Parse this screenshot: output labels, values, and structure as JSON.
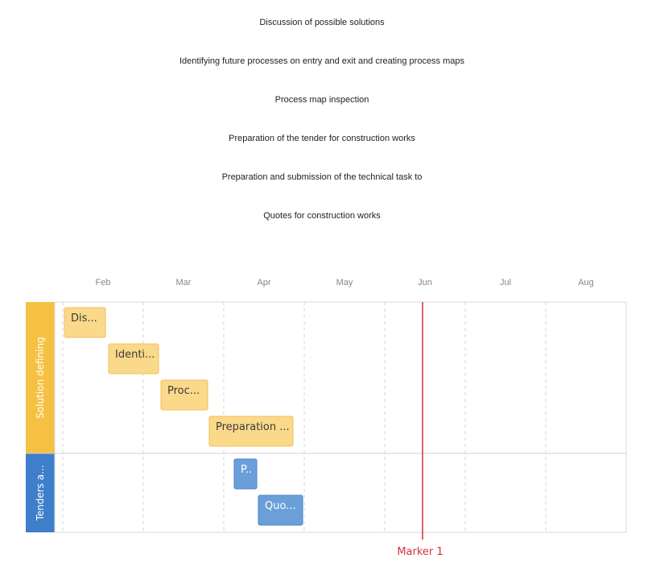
{
  "task_list": [
    "Discussion of possible solutions",
    "Identifying future processes on entry and exit and creating process maps",
    "Process map inspection",
    "Preparation of the tender for construction works",
    "Preparation and submission of the technical task to",
    "Quotes for construction works"
  ],
  "chart_data": {
    "type": "gantt",
    "months": [
      "Feb",
      "Mar",
      "Apr",
      "May",
      "Jun",
      "Jul",
      "Aug"
    ],
    "lanes": [
      {
        "name": "Solution defining",
        "color": "#f6c143",
        "bar_fill": "#fbd98a",
        "bar_stroke": "#f0c05a",
        "text_color": "#3b3b3b",
        "tasks": [
          {
            "label": "Dis...",
            "start": 0.02,
            "end": 0.53
          },
          {
            "label": "Identi...",
            "start": 0.57,
            "end": 1.19
          },
          {
            "label": "Proc...",
            "start": 1.22,
            "end": 1.8
          },
          {
            "label": "Preparation ...",
            "start": 1.82,
            "end": 2.86
          }
        ]
      },
      {
        "name": "Tenders a...",
        "color": "#3f7fc9",
        "bar_fill": "#6a9fd9",
        "bar_stroke": "#4a86c8",
        "text_color": "#ffffff",
        "tasks": [
          {
            "label": "P..",
            "start": 2.13,
            "end": 2.41
          },
          {
            "label": "Quo...",
            "start": 2.43,
            "end": 2.98
          }
        ]
      }
    ],
    "marker": {
      "label": "Marker 1",
      "position": 4.47,
      "color": "#d13438"
    }
  }
}
